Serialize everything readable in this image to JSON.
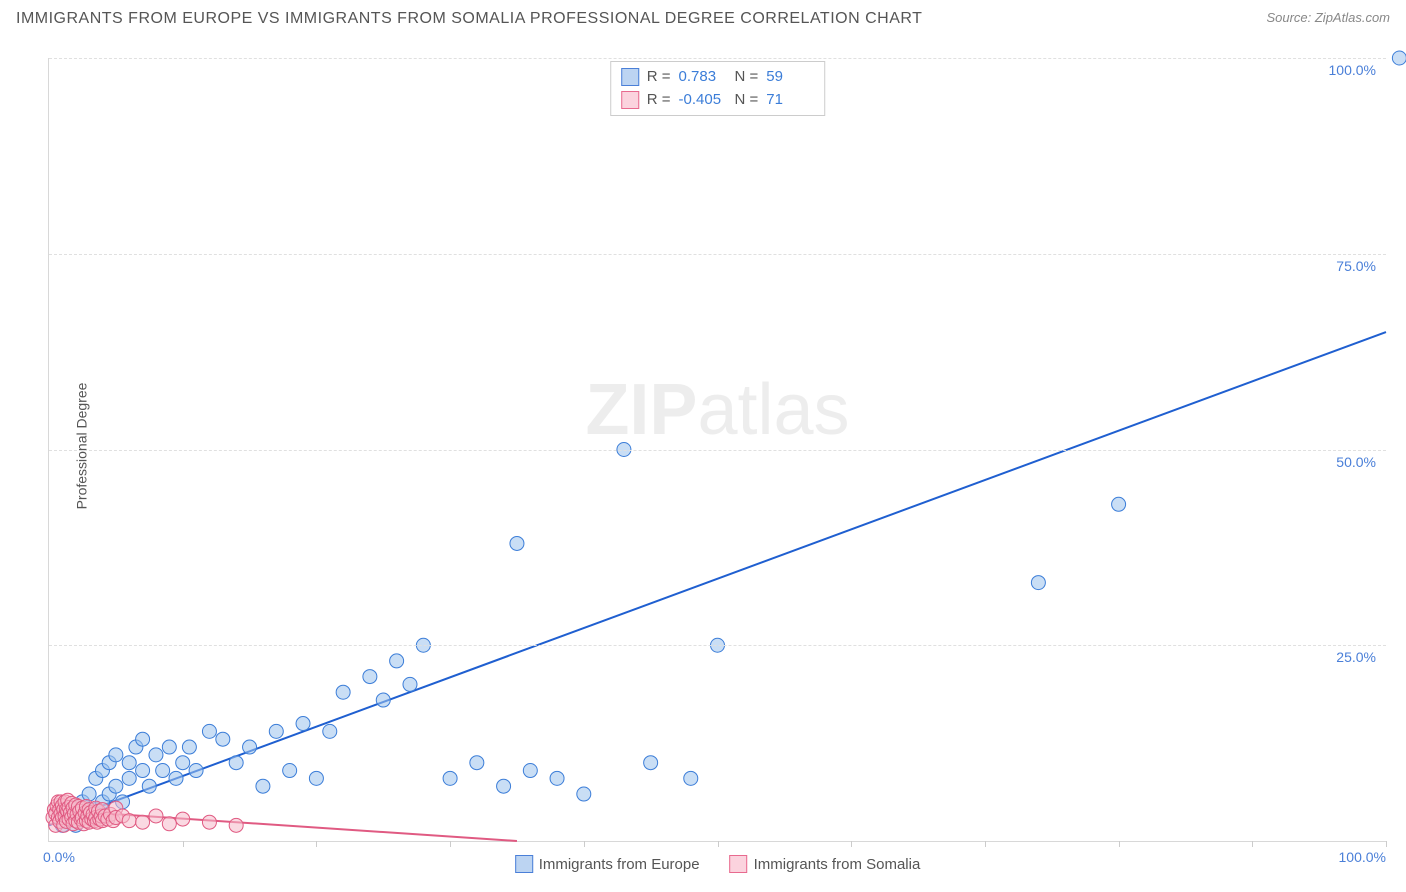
{
  "header": {
    "title": "IMMIGRANTS FROM EUROPE VS IMMIGRANTS FROM SOMALIA PROFESSIONAL DEGREE CORRELATION CHART",
    "source": "Source: ZipAtlas.com"
  },
  "watermark": {
    "zip": "ZIP",
    "atlas": "atlas"
  },
  "axes": {
    "y_label": "Professional Degree",
    "xlim": [
      0,
      100
    ],
    "ylim": [
      0,
      100
    ],
    "y_ticks": [
      25,
      50,
      75,
      100
    ],
    "y_tick_labels": [
      "25.0%",
      "50.0%",
      "75.0%",
      "100.0%"
    ],
    "x_tick_min": "0.0%",
    "x_tick_max": "100.0%",
    "x_minor_ticks": [
      10,
      20,
      30,
      40,
      50,
      60,
      70,
      80,
      90,
      100
    ],
    "grid_color": "#e0e0e0",
    "tick_label_color": "#4a7fd8"
  },
  "stats": {
    "series": [
      {
        "swatch_fill": "#bcd4f2",
        "swatch_border": "#4a7fd8",
        "R_label": "R =",
        "R": "0.783",
        "N_label": "N =",
        "N": "59"
      },
      {
        "swatch_fill": "#fbd3de",
        "swatch_border": "#e86a8f",
        "R_label": "R =",
        "R": "-0.405",
        "N_label": "N =",
        "N": "71"
      }
    ]
  },
  "legend": {
    "items": [
      {
        "label": "Immigrants from Europe",
        "swatch_fill": "#bcd4f2",
        "swatch_border": "#4a7fd8"
      },
      {
        "label": "Immigrants from Somalia",
        "swatch_fill": "#fbd3de",
        "swatch_border": "#e86a8f"
      }
    ]
  },
  "chart": {
    "type": "scatter",
    "background": "#ffffff",
    "marker_radius": 7,
    "marker_opacity": 0.55,
    "series": [
      {
        "name": "europe",
        "color_fill": "#9cc2ed",
        "color_stroke": "#3b7dd8",
        "trend": {
          "x1": 0,
          "y1": 2,
          "x2": 100,
          "y2": 65,
          "stroke": "#1f5fd0",
          "width": 2
        },
        "points": [
          [
            1,
            2
          ],
          [
            1.5,
            3
          ],
          [
            2,
            4
          ],
          [
            2,
            2
          ],
          [
            2.5,
            5
          ],
          [
            3,
            3
          ],
          [
            3,
            6
          ],
          [
            3.5,
            4
          ],
          [
            3.5,
            8
          ],
          [
            4,
            5
          ],
          [
            4,
            9
          ],
          [
            4.5,
            6
          ],
          [
            4.5,
            10
          ],
          [
            5,
            7
          ],
          [
            5,
            11
          ],
          [
            5.5,
            5
          ],
          [
            6,
            8
          ],
          [
            6,
            10
          ],
          [
            6.5,
            12
          ],
          [
            7,
            9
          ],
          [
            7,
            13
          ],
          [
            7.5,
            7
          ],
          [
            8,
            11
          ],
          [
            8.5,
            9
          ],
          [
            9,
            12
          ],
          [
            9.5,
            8
          ],
          [
            10,
            10
          ],
          [
            10.5,
            12
          ],
          [
            11,
            9
          ],
          [
            12,
            14
          ],
          [
            13,
            13
          ],
          [
            14,
            10
          ],
          [
            15,
            12
          ],
          [
            16,
            7
          ],
          [
            17,
            14
          ],
          [
            18,
            9
          ],
          [
            19,
            15
          ],
          [
            20,
            8
          ],
          [
            21,
            14
          ],
          [
            22,
            19
          ],
          [
            24,
            21
          ],
          [
            25,
            18
          ],
          [
            26,
            23
          ],
          [
            27,
            20
          ],
          [
            28,
            25
          ],
          [
            30,
            8
          ],
          [
            32,
            10
          ],
          [
            34,
            7
          ],
          [
            35,
            38
          ],
          [
            36,
            9
          ],
          [
            38,
            8
          ],
          [
            40,
            6
          ],
          [
            43,
            50
          ],
          [
            45,
            10
          ],
          [
            48,
            8
          ],
          [
            50,
            25
          ],
          [
            74,
            33
          ],
          [
            80,
            43
          ],
          [
            101,
            100
          ]
        ]
      },
      {
        "name": "somalia",
        "color_fill": "#f6b9cb",
        "color_stroke": "#e05a82",
        "trend": {
          "x1": 0,
          "y1": 4,
          "x2": 35,
          "y2": 0,
          "stroke": "#e05a82",
          "width": 2
        },
        "points": [
          [
            0.3,
            3
          ],
          [
            0.4,
            4
          ],
          [
            0.5,
            2
          ],
          [
            0.5,
            3.5
          ],
          [
            0.6,
            4.5
          ],
          [
            0.7,
            3
          ],
          [
            0.7,
            5
          ],
          [
            0.8,
            4
          ],
          [
            0.8,
            2.5
          ],
          [
            0.9,
            3.5
          ],
          [
            0.9,
            5
          ],
          [
            1,
            4.5
          ],
          [
            1,
            3
          ],
          [
            1.1,
            2
          ],
          [
            1.1,
            4
          ],
          [
            1.2,
            5
          ],
          [
            1.2,
            3.2
          ],
          [
            1.3,
            4
          ],
          [
            1.3,
            2.5
          ],
          [
            1.4,
            3.8
          ],
          [
            1.4,
            5.2
          ],
          [
            1.5,
            4.3
          ],
          [
            1.5,
            2.8
          ],
          [
            1.6,
            3.6
          ],
          [
            1.7,
            4.8
          ],
          [
            1.7,
            3
          ],
          [
            1.8,
            4.2
          ],
          [
            1.8,
            2.2
          ],
          [
            1.9,
            3.5
          ],
          [
            2,
            4.6
          ],
          [
            2,
            2.6
          ],
          [
            2.1,
            3.4
          ],
          [
            2.2,
            4.4
          ],
          [
            2.2,
            2.4
          ],
          [
            2.3,
            3.8
          ],
          [
            2.4,
            2.8
          ],
          [
            2.5,
            4.2
          ],
          [
            2.5,
            3
          ],
          [
            2.6,
            2.2
          ],
          [
            2.7,
            3.6
          ],
          [
            2.8,
            4.4
          ],
          [
            2.8,
            2.6
          ],
          [
            2.9,
            3.2
          ],
          [
            3,
            4
          ],
          [
            3,
            2.4
          ],
          [
            3.1,
            3.6
          ],
          [
            3.2,
            2.8
          ],
          [
            3.3,
            3.4
          ],
          [
            3.4,
            2.6
          ],
          [
            3.5,
            4.2
          ],
          [
            3.5,
            3
          ],
          [
            3.6,
            2.4
          ],
          [
            3.7,
            3.8
          ],
          [
            3.8,
            2.8
          ],
          [
            3.9,
            3.2
          ],
          [
            4,
            4
          ],
          [
            4,
            2.6
          ],
          [
            4.2,
            3.2
          ],
          [
            4.4,
            2.8
          ],
          [
            4.6,
            3.4
          ],
          [
            4.8,
            2.6
          ],
          [
            5,
            4.2
          ],
          [
            5,
            3
          ],
          [
            5.5,
            3.2
          ],
          [
            6,
            2.6
          ],
          [
            7,
            2.4
          ],
          [
            8,
            3.2
          ],
          [
            9,
            2.2
          ],
          [
            10,
            2.8
          ],
          [
            12,
            2.4
          ],
          [
            14,
            2
          ]
        ]
      }
    ]
  }
}
